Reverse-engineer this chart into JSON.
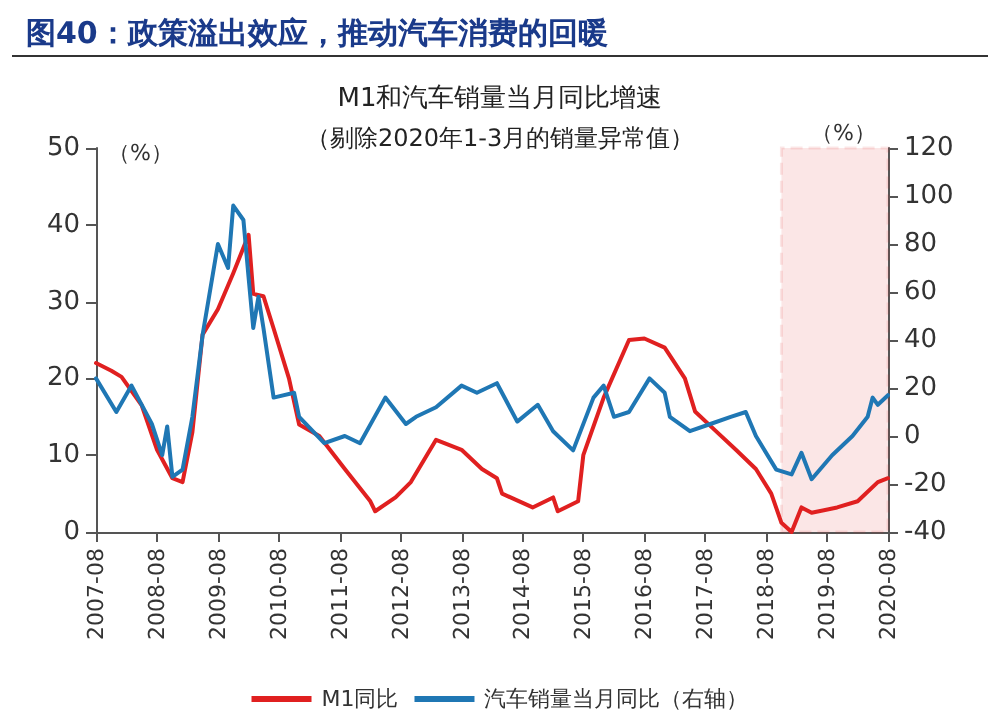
{
  "chart_data": {
    "type": "line",
    "title": "图40：政策溢出效应，推动汽车消费的回暖",
    "subtitle": "M1和汽车销量当月同比增速",
    "annotations": [
      "（剔除2020年1-3月的销量异常值）"
    ],
    "ylabel": "（%）",
    "y2label": "（%）",
    "xlim": [
      "2007-08",
      "2020-08"
    ],
    "xticks": [
      "2007-08",
      "2008-08",
      "2009-08",
      "2010-08",
      "2011-08",
      "2012-08",
      "2013-08",
      "2014-08",
      "2015-08",
      "2016-08",
      "2017-08",
      "2018-08",
      "2019-08",
      "2020-08"
    ],
    "ylim": [
      0,
      50
    ],
    "yticks": [
      0,
      10,
      20,
      30,
      40,
      50
    ],
    "y2lim": [
      -40,
      120
    ],
    "y2ticks": [
      -40,
      -20,
      0,
      20,
      40,
      60,
      80,
      100,
      120
    ],
    "grid": false,
    "legend": "bottom",
    "marker": "none",
    "line_style": "solid",
    "bands": [
      {
        "axis": "x",
        "from": "2018-11",
        "to": "2020-08",
        "color": "#e03030"
      }
    ],
    "series": [
      {
        "name": "M1同比",
        "color": "#e02020",
        "x": [
          "2007-08",
          "2007-11",
          "2008-01",
          "2008-05",
          "2008-08",
          "2008-11",
          "2009-01",
          "2009-03",
          "2009-05",
          "2009-08",
          "2009-11",
          "2010-02",
          "2010-03",
          "2010-05",
          "2010-07",
          "2010-10",
          "2010-12",
          "2011-04",
          "2011-09",
          "2012-02",
          "2012-03",
          "2012-07",
          "2012-10",
          "2013-03",
          "2013-08",
          "2013-12",
          "2014-03",
          "2014-04",
          "2014-10",
          "2015-02",
          "2015-03",
          "2015-07",
          "2015-08",
          "2015-12",
          "2016-05",
          "2016-08",
          "2016-12",
          "2017-04",
          "2017-06",
          "2017-10",
          "2018-02",
          "2018-06",
          "2018-09",
          "2018-11",
          "2019-01",
          "2019-03",
          "2019-05",
          "2019-10",
          "2020-02",
          "2020-06",
          "2020-08"
        ],
        "values": [
          22,
          21,
          20.2,
          16.5,
          10.7,
          7,
          6.5,
          13,
          25.7,
          29,
          33.7,
          38.7,
          31,
          30.7,
          26.5,
          20,
          14,
          12.5,
          8.2,
          4,
          2.7,
          4.5,
          6.5,
          12,
          10.7,
          8.2,
          7,
          5,
          3.2,
          4.5,
          2.7,
          4,
          10,
          17.5,
          25,
          25.2,
          24,
          20,
          15.7,
          13.2,
          10.7,
          8.2,
          5,
          1.2,
          0,
          3.2,
          2.5,
          3.2,
          4,
          6.5,
          7
        ]
      },
      {
        "name": "汽车销量当月同比（右轴）",
        "color": "#1f77b4",
        "axis": "y2",
        "x": [
          "2007-08",
          "2007-12",
          "2008-03",
          "2008-07",
          "2008-09",
          "2008-10",
          "2008-11",
          "2009-01",
          "2009-03",
          "2009-05",
          "2009-08",
          "2009-10",
          "2009-11",
          "2010-01",
          "2010-02",
          "2010-03",
          "2010-04",
          "2010-05",
          "2010-07",
          "2010-11",
          "2010-12",
          "2011-05",
          "2011-09",
          "2011-12",
          "2012-05",
          "2012-09",
          "2012-11",
          "2013-03",
          "2013-08",
          "2013-11",
          "2014-03",
          "2014-07",
          "2014-11",
          "2015-02",
          "2015-06",
          "2015-10",
          "2015-12",
          "2016-02",
          "2016-05",
          "2016-09",
          "2016-12",
          "2017-01",
          "2017-05",
          "2017-09",
          "2018-01",
          "2018-04",
          "2018-06",
          "2018-10",
          "2019-01",
          "2019-03",
          "2019-05",
          "2019-09",
          "2020-01",
          "2020-04",
          "2020-05",
          "2020-06",
          "2020-08"
        ],
        "values": [
          24,
          10,
          21,
          5,
          -8,
          4,
          -17,
          -14,
          8,
          42,
          80,
          70,
          96,
          90,
          66,
          45,
          58,
          45,
          16,
          18,
          8,
          -3,
          0,
          -3,
          16,
          5,
          8,
          12,
          21,
          18,
          22,
          6,
          13,
          2,
          -6,
          16,
          21,
          8,
          10,
          24,
          18,
          8,
          2,
          5,
          8,
          10,
          0,
          -14,
          -16,
          -7,
          -18,
          -8,
          0,
          8,
          16,
          13,
          17
        ]
      }
    ]
  }
}
